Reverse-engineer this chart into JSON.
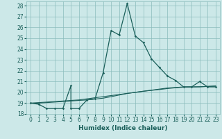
{
  "xlabel": "Humidex (Indice chaleur)",
  "bg_color": "#cce8e8",
  "grid_color": "#8bbcbc",
  "line_color": "#1a5f5a",
  "xlim": [
    -0.5,
    23.5
  ],
  "ylim": [
    18,
    28.4
  ],
  "yticks": [
    18,
    19,
    20,
    21,
    22,
    23,
    24,
    25,
    26,
    27,
    28
  ],
  "xticks": [
    0,
    1,
    2,
    3,
    4,
    5,
    6,
    7,
    8,
    9,
    10,
    11,
    12,
    13,
    14,
    15,
    16,
    17,
    18,
    19,
    20,
    21,
    22,
    23
  ],
  "series1_x": [
    0,
    1,
    2,
    3,
    4,
    5,
    5,
    6,
    7,
    8,
    9,
    10,
    11,
    12,
    13,
    14,
    15,
    16,
    17,
    18,
    19,
    20,
    21,
    22,
    23
  ],
  "series1_y": [
    19.0,
    18.9,
    18.5,
    18.5,
    18.5,
    20.6,
    18.5,
    18.5,
    19.3,
    19.4,
    21.8,
    25.7,
    25.3,
    28.2,
    25.2,
    24.6,
    23.1,
    22.3,
    21.5,
    21.1,
    20.5,
    20.5,
    21.0,
    20.5,
    20.5
  ],
  "series2_x": [
    0,
    1,
    2,
    3,
    4,
    5,
    6,
    7,
    8,
    9,
    10,
    11,
    12,
    13,
    14,
    15,
    16,
    17,
    18,
    19,
    20,
    21,
    22,
    23
  ],
  "series2_y": [
    19.0,
    19.05,
    19.1,
    19.15,
    19.2,
    19.25,
    19.3,
    19.4,
    19.5,
    19.6,
    19.7,
    19.8,
    19.9,
    20.0,
    20.1,
    20.2,
    20.3,
    20.4,
    20.45,
    20.5,
    20.5,
    20.5,
    20.55,
    20.6
  ],
  "series3_x": [
    0,
    1,
    2,
    3,
    4,
    5,
    6,
    7,
    8,
    9,
    10,
    11,
    12,
    13,
    14,
    15,
    16,
    17,
    18,
    19,
    20,
    21,
    22,
    23
  ],
  "series3_y": [
    19.0,
    19.0,
    19.05,
    19.1,
    19.15,
    19.2,
    19.25,
    19.3,
    19.38,
    19.46,
    19.6,
    19.75,
    19.9,
    20.0,
    20.1,
    20.18,
    20.26,
    20.35,
    20.42,
    20.48,
    20.5,
    20.52,
    20.54,
    20.56
  ],
  "xlabel_fontsize": 6.5,
  "tick_fontsize": 5.5
}
